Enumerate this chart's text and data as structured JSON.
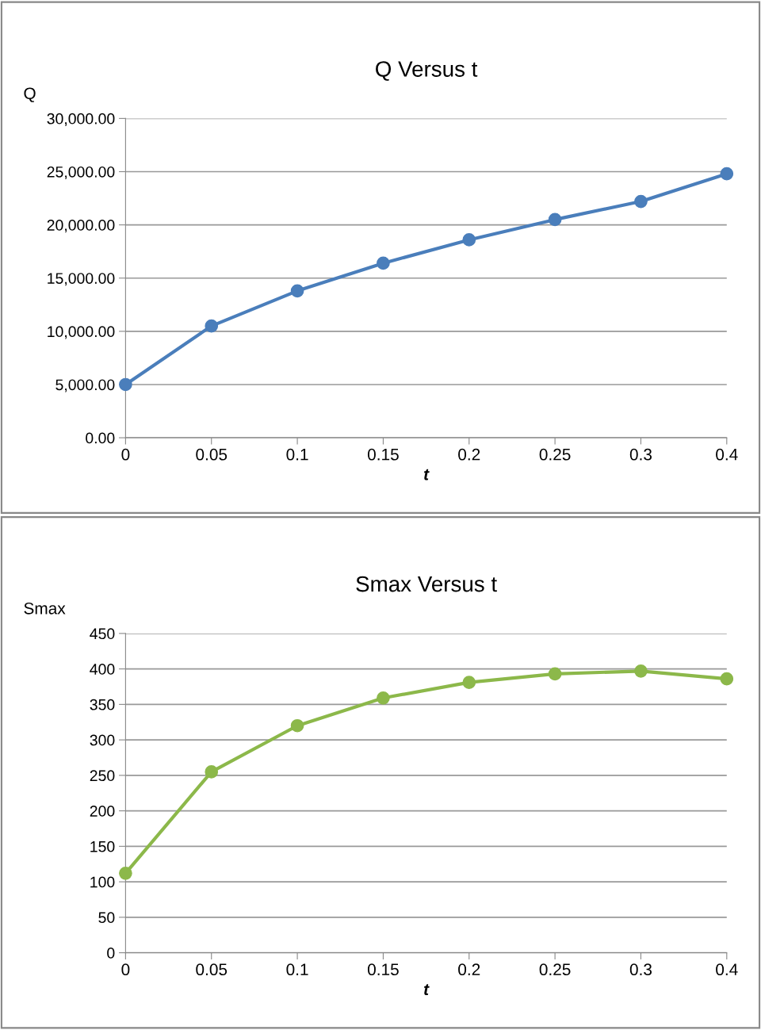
{
  "chart_data": [
    {
      "type": "line",
      "title": "Q Versus t",
      "xlabel": "t",
      "ylabel": "Q",
      "categories": [
        "0",
        "0.05",
        "0.1",
        "0.15",
        "0.2",
        "0.25",
        "0.3",
        "0.4"
      ],
      "series": [
        {
          "color": "#4a7ebb",
          "values": [
            5000,
            10500,
            13800,
            16400,
            18600,
            20500,
            22200,
            24800
          ]
        }
      ],
      "ylim": [
        0,
        30000
      ],
      "yticks": [
        {
          "value": 0,
          "label": "0.00"
        },
        {
          "value": 5000,
          "label": "5,000.00"
        },
        {
          "value": 10000,
          "label": "10,000.00"
        },
        {
          "value": 15000,
          "label": "15,000.00"
        },
        {
          "value": 20000,
          "label": "20,000.00"
        },
        {
          "value": 25000,
          "label": "25,000.00"
        },
        {
          "value": 30000,
          "label": "30,000.00"
        }
      ],
      "grid": "y",
      "marker": "circle",
      "line_style": "solid"
    },
    {
      "type": "line",
      "title": "Smax Versus t",
      "xlabel": "t",
      "ylabel": "Smax",
      "categories": [
        "0",
        "0.05",
        "0.1",
        "0.15",
        "0.2",
        "0.25",
        "0.3",
        "0.4"
      ],
      "series": [
        {
          "color": "#8cb84a",
          "values": [
            112,
            255,
            320,
            359,
            381,
            393,
            397,
            386
          ]
        }
      ],
      "ylim": [
        0,
        450
      ],
      "yticks": [
        0,
        50,
        100,
        150,
        200,
        250,
        300,
        350,
        400,
        450
      ],
      "grid": "y",
      "marker": "circle",
      "line_style": "solid"
    }
  ]
}
